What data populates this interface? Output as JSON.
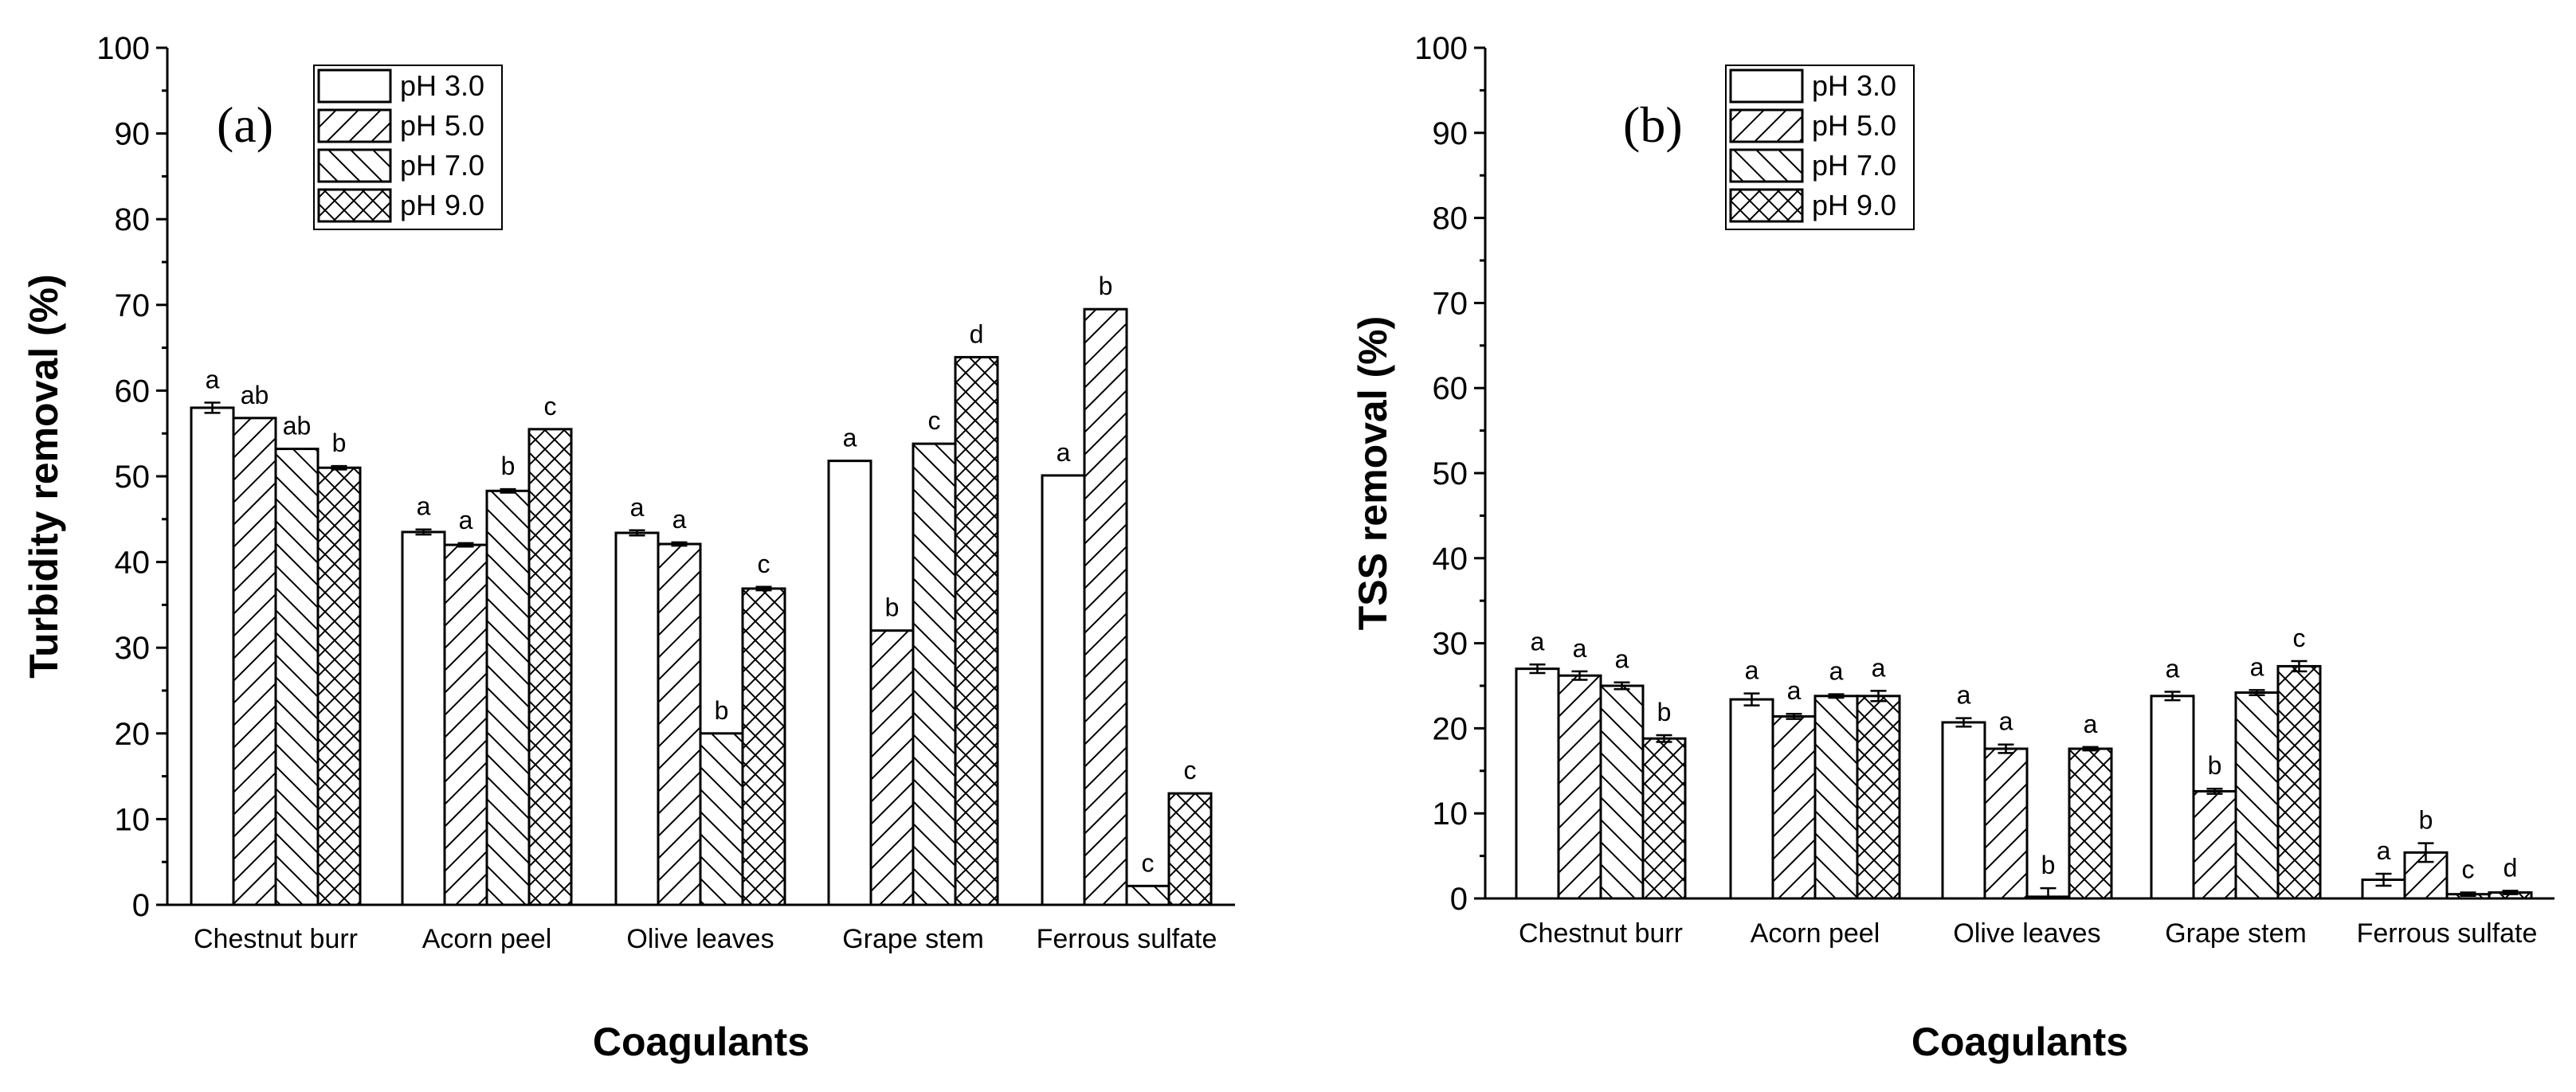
{
  "chart_data": [
    {
      "id": "a",
      "type": "bar",
      "panel_label": "(a)",
      "title": "",
      "xlabel": "Coagulants",
      "ylabel": "Turbidity removal (%)",
      "ylim": [
        0,
        100
      ],
      "yticks": [
        0,
        10,
        20,
        30,
        40,
        50,
        60,
        70,
        80,
        90,
        100
      ],
      "categories": [
        "Chestnut burr",
        "Acorn peel",
        "Olive leaves",
        "Grape stem",
        "Ferrous sulfate"
      ],
      "legend_position": "top-left",
      "series": [
        {
          "name": "pH 3.0",
          "pattern": "blank",
          "values": [
            58,
            43.5,
            43.4,
            51.8,
            50.1
          ],
          "errors": [
            0.6,
            0.3,
            0.3,
            0,
            0
          ],
          "letters": [
            "a",
            "a",
            "a",
            "a",
            "a"
          ]
        },
        {
          "name": "pH 5.0",
          "pattern": "diag-up",
          "values": [
            56.8,
            42,
            42.1,
            32,
            69.5
          ],
          "errors": [
            0,
            0.2,
            0.2,
            0,
            0
          ],
          "letters": [
            "ab",
            "a",
            "a",
            "b",
            "b"
          ]
        },
        {
          "name": "pH 7.0",
          "pattern": "diag-down",
          "values": [
            53.2,
            48.3,
            20,
            53.8,
            2.2
          ],
          "errors": [
            0,
            0.2,
            0,
            0,
            0
          ],
          "letters": [
            "ab",
            "b",
            "b",
            "c",
            "c"
          ]
        },
        {
          "name": "pH 9.0",
          "pattern": "cross",
          "values": [
            51,
            55.5,
            36.9,
            63.9,
            13
          ],
          "errors": [
            0.2,
            0,
            0.2,
            0,
            0
          ],
          "letters": [
            "b",
            "c",
            "c",
            "d",
            "c"
          ]
        }
      ]
    },
    {
      "id": "b",
      "type": "bar",
      "panel_label": "(b)",
      "title": "",
      "xlabel": "Coagulants",
      "ylabel": "TSS removal (%)",
      "ylim": [
        0,
        100
      ],
      "yticks": [
        0,
        10,
        20,
        30,
        40,
        50,
        60,
        70,
        80,
        90,
        100
      ],
      "categories": [
        "Chestnut burr",
        "Acorn peel",
        "Olive leaves",
        "Grape stem",
        "Ferrous sulfate"
      ],
      "legend_position": "top-left",
      "series": [
        {
          "name": "pH 3.0",
          "pattern": "blank",
          "values": [
            27,
            23.4,
            20.7,
            23.8,
            2.2
          ],
          "errors": [
            0.5,
            0.7,
            0.5,
            0.5,
            0.7
          ],
          "letters": [
            "a",
            "a",
            "a",
            "a",
            "a"
          ]
        },
        {
          "name": "pH 5.0",
          "pattern": "diag-up",
          "values": [
            26.2,
            21.4,
            17.6,
            12.6,
            5.4
          ],
          "errors": [
            0.5,
            0.3,
            0.5,
            0.3,
            1.1
          ],
          "letters": [
            "a",
            "a",
            "a",
            "b",
            "b"
          ]
        },
        {
          "name": "pH 7.0",
          "pattern": "diag-down",
          "values": [
            25,
            23.8,
            0.2,
            24.2,
            0.5
          ],
          "errors": [
            0.4,
            0.2,
            1,
            0.3,
            0.2
          ],
          "letters": [
            "a",
            "a",
            "b",
            "a",
            "c"
          ]
        },
        {
          "name": "pH 9.0",
          "pattern": "cross",
          "values": [
            18.8,
            23.8,
            17.6,
            27.3,
            0.7
          ],
          "errors": [
            0.4,
            0.6,
            0.2,
            0.6,
            0.2
          ],
          "letters": [
            "b",
            "a",
            "a",
            "c",
            "d"
          ]
        }
      ]
    }
  ]
}
